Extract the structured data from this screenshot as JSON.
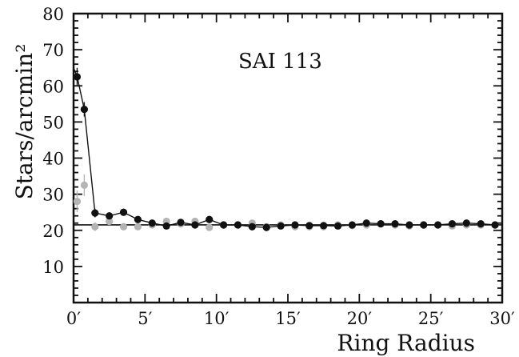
{
  "chart_data": {
    "type": "scatter",
    "title": "SAI 113",
    "xlabel": "Ring Radius",
    "ylabel": "Stars/arcmin²",
    "xlim": [
      0,
      30
    ],
    "ylim": [
      0,
      80
    ],
    "x_ticks": [
      {
        "value": 0,
        "label": "0′"
      },
      {
        "value": 5,
        "label": "5′"
      },
      {
        "value": 10,
        "label": "10′"
      },
      {
        "value": 15,
        "label": "15′"
      },
      {
        "value": 20,
        "label": "20′"
      },
      {
        "value": 25,
        "label": "25′"
      },
      {
        "value": 30,
        "label": "30′"
      }
    ],
    "y_ticks": [
      {
        "value": 10,
        "label": "10"
      },
      {
        "value": 20,
        "label": "20"
      },
      {
        "value": 30,
        "label": "30"
      },
      {
        "value": 40,
        "label": "40"
      },
      {
        "value": 50,
        "label": "50"
      },
      {
        "value": 60,
        "label": "60"
      },
      {
        "value": 70,
        "label": "70"
      },
      {
        "value": 80,
        "label": "80"
      }
    ],
    "series": [
      {
        "color": "#111111",
        "line": true,
        "x": [
          0.25,
          0.75,
          1.5,
          2.5,
          3.5,
          4.5,
          5.5,
          6.5,
          7.5,
          8.5,
          9.5,
          10.5,
          11.5,
          12.5,
          13.5,
          14.5,
          15.5,
          16.5,
          17.5,
          18.5,
          19.5,
          20.5,
          21.5,
          22.5,
          23.5,
          24.5,
          25.5,
          26.5,
          27.5,
          28.5,
          29.5
        ],
        "y": [
          62.5,
          53.5,
          24.8,
          24.0,
          25.0,
          23.0,
          22.0,
          21.2,
          22.2,
          21.5,
          23.0,
          21.5,
          21.5,
          21.0,
          20.8,
          21.2,
          21.5,
          21.3,
          21.3,
          21.2,
          21.5,
          22.0,
          21.8,
          21.8,
          21.5,
          21.5,
          21.5,
          21.8,
          22.0,
          21.8,
          21.5
        ],
        "yerr": [
          2.5,
          2.0,
          1.2,
          1.0,
          1.0,
          0.8,
          0.7,
          0.7,
          0.6,
          0.6,
          0.6,
          0.5,
          0.5,
          0.5,
          0.5,
          0.5,
          0.5,
          0.5,
          0.5,
          0.5,
          0.5,
          0.5,
          0.5,
          0.5,
          0.5,
          0.5,
          0.5,
          0.5,
          0.5,
          0.5,
          0.5
        ]
      },
      {
        "color": "#b4b4b4",
        "line": false,
        "x": [
          0.25,
          0.75,
          1.5,
          2.5,
          3.5,
          4.5,
          5.5,
          6.5,
          7.5,
          8.5,
          9.5,
          10.5,
          11.5,
          12.5,
          13.5,
          14.5,
          15.5,
          16.5,
          17.5,
          18.5,
          19.5,
          20.5,
          21.5,
          22.5,
          23.5,
          24.5,
          25.5,
          26.5,
          27.5,
          28.5,
          29.5
        ],
        "y": [
          28.0,
          32.5,
          21.0,
          22.5,
          21.0,
          21.0,
          21.5,
          22.5,
          21.8,
          22.5,
          20.8,
          21.5,
          21.5,
          22.0,
          21.0,
          21.5,
          21.0,
          21.0,
          21.0,
          21.5,
          21.3,
          21.5,
          21.8,
          21.5,
          21.2,
          21.5,
          21.5,
          21.2,
          21.5,
          21.5,
          21.5
        ],
        "yerr": [
          3.0,
          3.0,
          1.2,
          1.0,
          0.9,
          0.8,
          0.7,
          0.7,
          0.6,
          0.6,
          0.6,
          0.5,
          0.5,
          0.5,
          0.5,
          0.5,
          0.5,
          0.5,
          0.5,
          0.5,
          0.5,
          0.5,
          0.5,
          0.5,
          0.5,
          0.5,
          0.5,
          0.5,
          0.5,
          0.5,
          0.5
        ]
      }
    ],
    "reference_line": 21.5,
    "grid": false,
    "legend": "none"
  }
}
